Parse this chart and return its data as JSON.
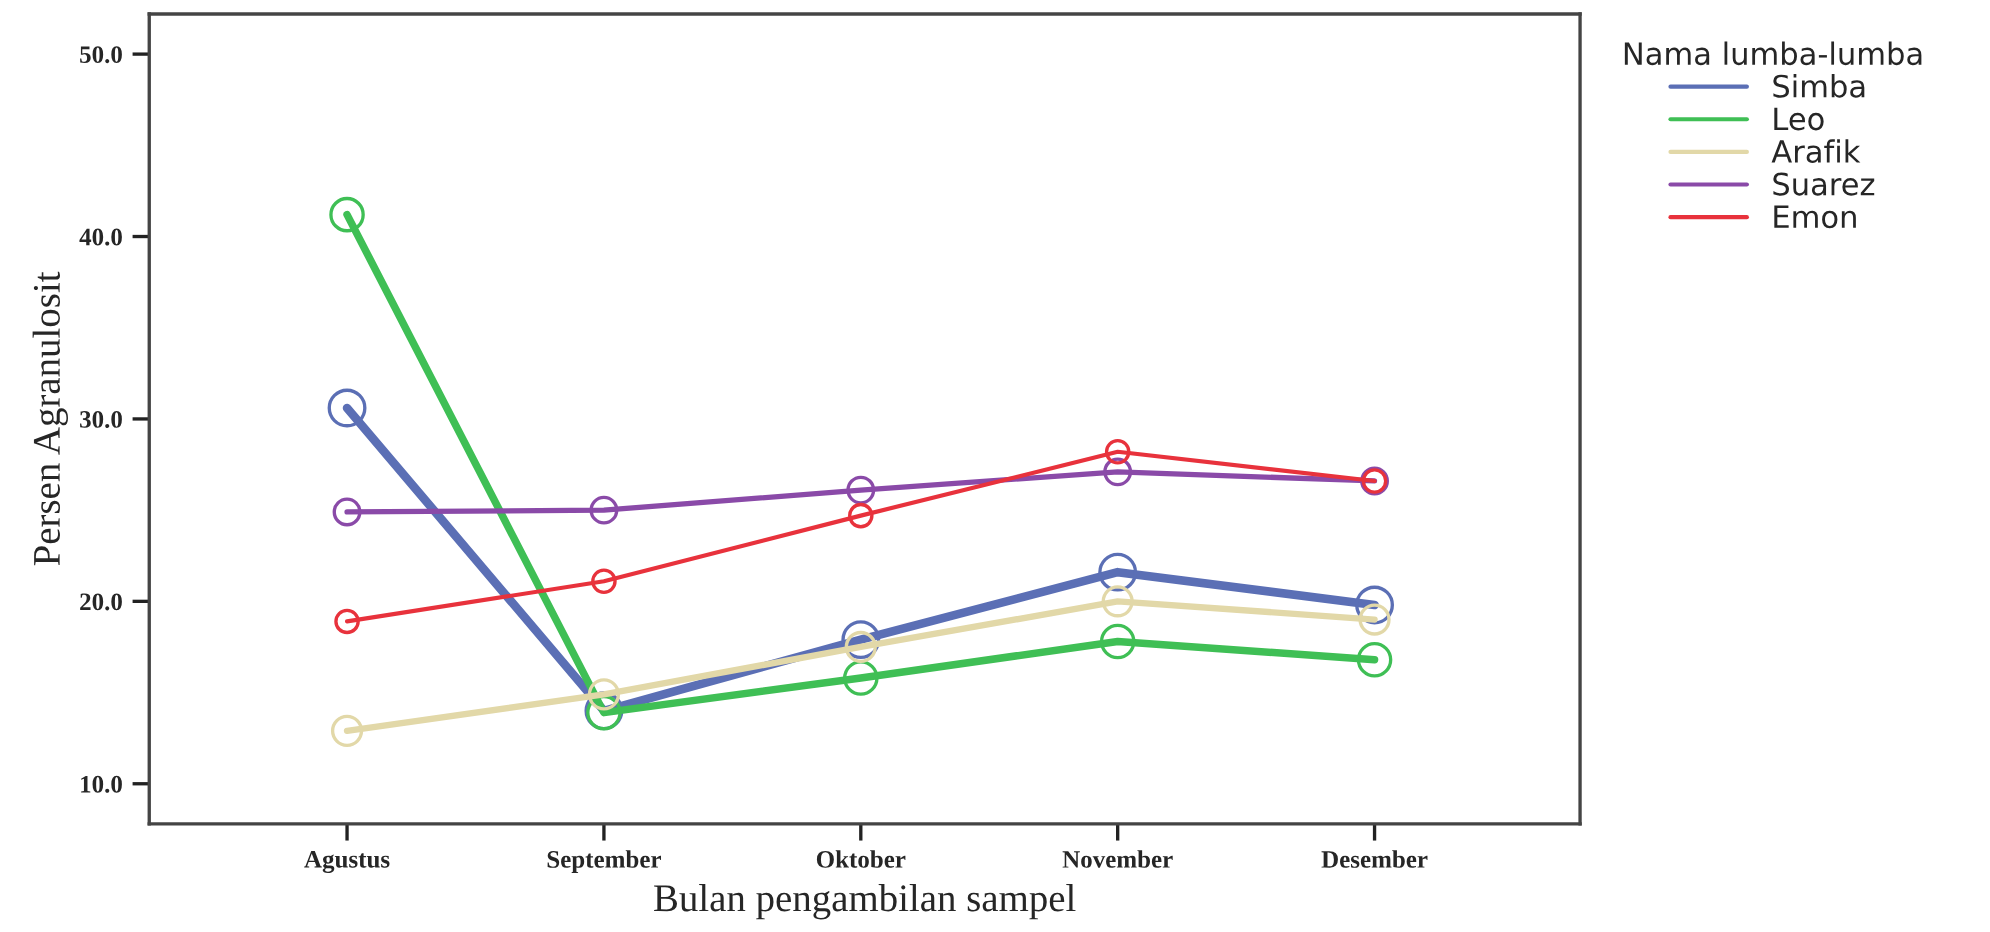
{
  "chart_data": {
    "type": "line",
    "xlabel": "Bulan pengambilan sampel",
    "ylabel": "Persen Agranulosit",
    "legend_title": "Nama lumba-lumba",
    "categories": [
      "Agustus",
      "September",
      "Oktober",
      "November",
      "Desember"
    ],
    "series": [
      {
        "name": "Simba",
        "color": "#5b6fb5",
        "values": [
          30.6,
          14.0,
          17.9,
          21.6,
          19.8
        ]
      },
      {
        "name": "Leo",
        "color": "#3fbf55",
        "values": [
          41.2,
          13.9,
          15.8,
          17.8,
          16.8
        ]
      },
      {
        "name": "Arafik",
        "color": "#e2d8a8",
        "values": [
          12.9,
          14.9,
          17.5,
          20.0,
          19.0
        ]
      },
      {
        "name": "Suarez",
        "color": "#8a4aa8",
        "values": [
          24.9,
          25.0,
          26.1,
          27.1,
          26.6
        ]
      },
      {
        "name": "Emon",
        "color": "#e8323c",
        "values": [
          18.9,
          21.1,
          24.7,
          28.2,
          26.6
        ]
      }
    ],
    "ylim": [
      7.8,
      52.2
    ],
    "yticks": [
      {
        "value": 10,
        "label": "10.0"
      },
      {
        "value": 20,
        "label": "20.0"
      },
      {
        "value": 30,
        "label": "30.0"
      },
      {
        "value": 40,
        "label": "40.0"
      },
      {
        "value": 50,
        "label": "50.0"
      }
    ],
    "marker": "circle",
    "line_style": "solid",
    "grid": false,
    "legend": "top right"
  }
}
